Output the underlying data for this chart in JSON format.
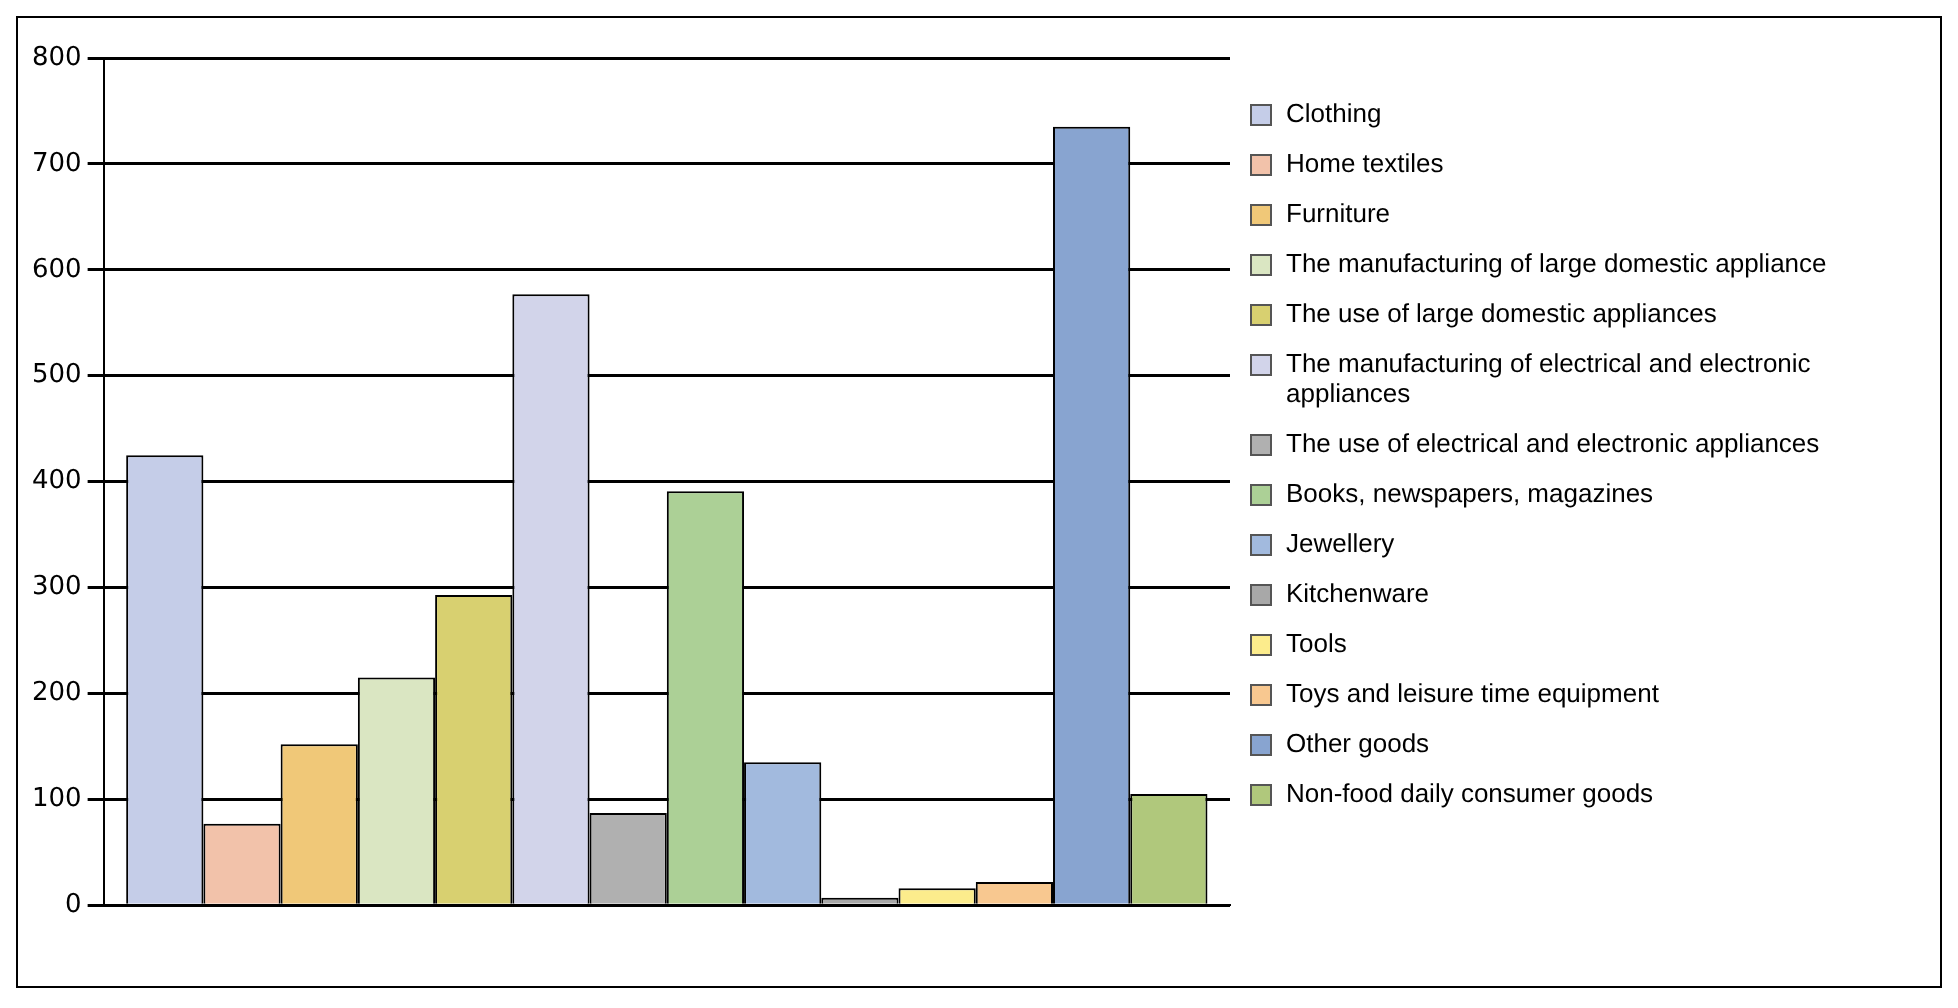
{
  "chart_data": {
    "type": "bar",
    "categories": [
      null
    ],
    "series": [
      {
        "name": "Clothing",
        "color": "#c5cde8",
        "values": [
          425
        ]
      },
      {
        "name": "Home textiles",
        "color": "#f2c2aa",
        "values": [
          77
        ]
      },
      {
        "name": "Furniture",
        "color": "#f0c878",
        "values": [
          152
        ]
      },
      {
        "name": "The manufacturing of large domestic appliance",
        "color": "#dae6c2",
        "values": [
          215
        ]
      },
      {
        "name": "The use of large domestic appliances",
        "color": "#d8d070",
        "values": [
          293
        ]
      },
      {
        "name": "The manufacturing of electrical and electronic appliances",
        "color": "#d2d4ea",
        "values": [
          577
        ]
      },
      {
        "name": "The use of electrical and electronic appliances",
        "color": "#b0b0b0",
        "values": [
          87
        ]
      },
      {
        "name": "Books, newspapers, magazines",
        "color": "#acd096",
        "values": [
          391
        ]
      },
      {
        "name": "Jewellery",
        "color": "#a2bade",
        "values": [
          135
        ]
      },
      {
        "name": "Kitchenware",
        "color": "#a8a8a8",
        "values": [
          7
        ]
      },
      {
        "name": "Tools",
        "color": "#fcec8c",
        "values": [
          16
        ]
      },
      {
        "name": "Toys and leisure time equipment",
        "color": "#f8c890",
        "values": [
          22
        ]
      },
      {
        "name": "Other goods",
        "color": "#88a4d0",
        "values": [
          735
        ]
      },
      {
        "name": "Non-food daily consumer goods",
        "color": "#b0c87c",
        "values": [
          105
        ]
      }
    ],
    "ylim": [
      0,
      800
    ],
    "yticks": [
      0,
      100,
      200,
      300,
      400,
      500,
      600,
      700,
      800
    ],
    "grid": "y",
    "legend": "right"
  }
}
